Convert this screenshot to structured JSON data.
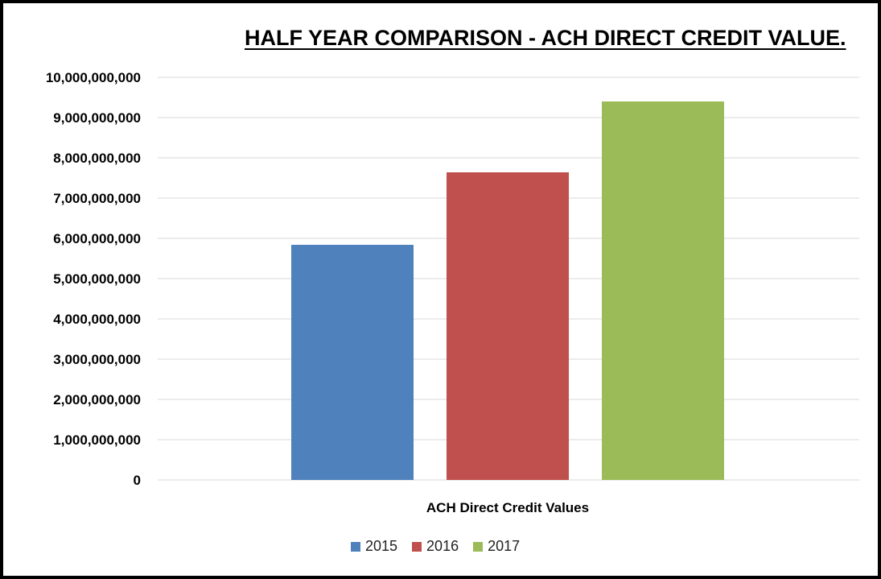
{
  "chart_data": {
    "type": "bar",
    "title": "HALF YEAR COMPARISON - ACH DIRECT CREDIT VALUE.",
    "xlabel": "ACH Direct Credit Values",
    "ylabel": "",
    "categories": [
      "ACH Direct Credit Values"
    ],
    "series": [
      {
        "name": "2015",
        "color": "#4f81bd",
        "values": [
          5840000000
        ]
      },
      {
        "name": "2016",
        "color": "#c0504d",
        "values": [
          7640000000
        ]
      },
      {
        "name": "2017",
        "color": "#9bbb59",
        "values": [
          9400000000
        ]
      }
    ],
    "ylim": [
      0,
      10000000000
    ],
    "yticks": [
      0,
      1000000000,
      2000000000,
      3000000000,
      4000000000,
      5000000000,
      6000000000,
      7000000000,
      8000000000,
      9000000000,
      10000000000
    ],
    "ytick_labels": [
      "0",
      "1,000,000,000",
      "2,000,000,000",
      "3,000,000,000",
      "4,000,000,000",
      "5,000,000,000",
      "6,000,000,000",
      "7,000,000,000",
      "8,000,000,000",
      "9,000,000,000",
      "10,000,000,000"
    ],
    "grid": true,
    "gridline_color": "#d9d9d9",
    "legend_position": "bottom"
  }
}
